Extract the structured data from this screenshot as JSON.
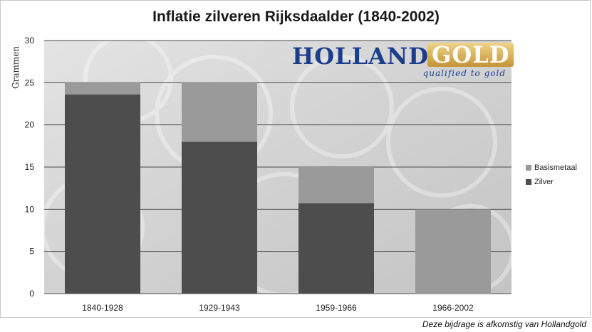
{
  "chart_data": {
    "type": "bar",
    "stacked": true,
    "title": "Inflatie zilveren Rijksdaalder (1840-2002)",
    "ylabel": "Grammen",
    "xlabel": "",
    "ylim": [
      0,
      30
    ],
    "yticks": [
      0,
      5,
      10,
      15,
      20,
      25,
      30
    ],
    "grid": true,
    "legend_position": "right",
    "categories": [
      "1840-1928",
      "1929-1943",
      "1959-1966",
      "1966-2002"
    ],
    "series": [
      {
        "name": "Zilver",
        "values": [
          23.6,
          18,
          10.7,
          0
        ],
        "color": "#4d4d4d"
      },
      {
        "name": "Basismetaal",
        "values": [
          1.4,
          7,
          4.3,
          10
        ],
        "color": "#9a9a9a"
      }
    ]
  },
  "logo": {
    "holland": "HOLLAND",
    "gold": "GOLD",
    "tagline": "qualified to gold"
  },
  "footer_note": "Deze bijdrage is afkomstig van Hollandgold"
}
